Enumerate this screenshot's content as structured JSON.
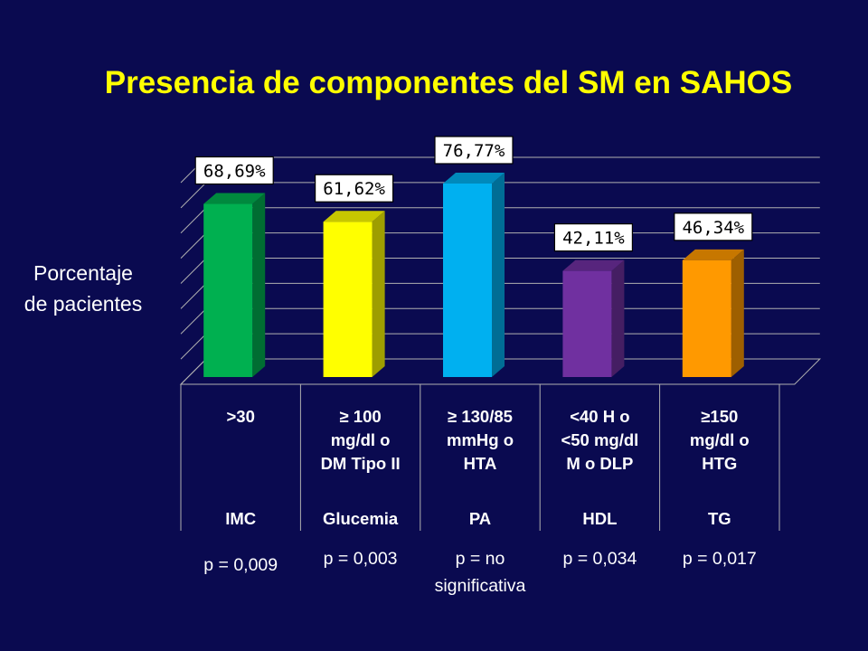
{
  "title": "Presencia de componentes del SM en SAHOS",
  "ylabel_line1": "Porcentaje",
  "ylabel_line2": "de pacientes",
  "chart_data": {
    "type": "bar",
    "categories": [
      "IMC",
      "Glucemia",
      "PA",
      "HDL",
      "TG"
    ],
    "criteria": [
      [
        ">30"
      ],
      [
        "≥ 100",
        "mg/dl o",
        "DM Tipo II"
      ],
      [
        "≥ 130/85",
        "mmHg o",
        "HTA"
      ],
      [
        "<40 H o",
        "<50 mg/dl",
        "M o DLP"
      ],
      [
        "≥150",
        "mg/dl o",
        "HTG"
      ]
    ],
    "values": [
      68.69,
      61.62,
      76.77,
      42.11,
      46.34
    ],
    "data_labels": [
      "68,69%",
      "61,62%",
      "76,77%",
      "42,11%",
      "46,34%"
    ],
    "colors": [
      "#00b050",
      "#ffff00",
      "#00b0f0",
      "#7030a0",
      "#ff9900"
    ],
    "p_values": [
      [
        "p = 0,009"
      ],
      [
        "p = 0,003"
      ],
      [
        "p = no",
        "significativa"
      ],
      [
        "p = 0,034"
      ],
      [
        "p = 0,017"
      ]
    ],
    "ylim": [
      0,
      80
    ],
    "grid": true
  }
}
